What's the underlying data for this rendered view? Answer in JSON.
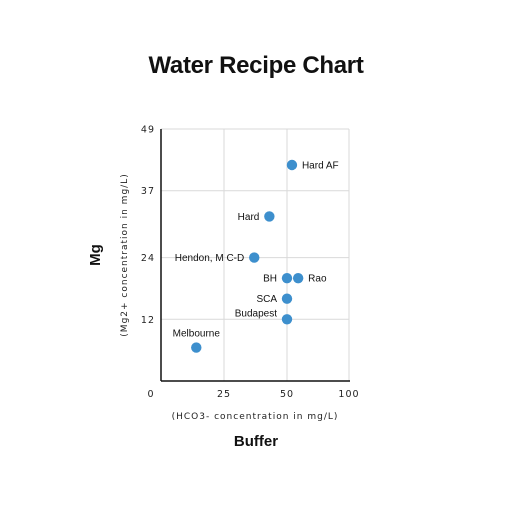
{
  "chart_data": {
    "type": "scatter",
    "title": "Water Recipe Chart",
    "xlabel": "Buffer",
    "xlabel_sub": "(HCO3- concentration in mg/L)",
    "ylabel": "Mg",
    "ylabel_sub": "(Mg2+ concentration in mg/L)",
    "xlim": [
      0,
      100
    ],
    "ylim": [
      0,
      49
    ],
    "xticks": [
      "0",
      "25",
      "50",
      "100"
    ],
    "xtick_values": [
      0,
      25,
      50,
      100
    ],
    "yticks": [
      "12",
      "24",
      "37",
      "49"
    ],
    "ytick_values": [
      12,
      24,
      37,
      49
    ],
    "grid": true,
    "marker_color": "#3d8fcd",
    "points": [
      {
        "label": "Hard AF",
        "x": 54,
        "y": 42
      },
      {
        "label": "Hard",
        "x": 43,
        "y": 32
      },
      {
        "label": "Hendon, M C-D",
        "x": 37,
        "y": 24
      },
      {
        "label": "BH",
        "x": 50,
        "y": 20
      },
      {
        "label": "Rao",
        "x": 59,
        "y": 20
      },
      {
        "label": "SCA",
        "x": 50,
        "y": 16
      },
      {
        "label": "Budapest",
        "x": 50,
        "y": 12
      },
      {
        "label": "Melbourne",
        "x": 14,
        "y": 6.5
      }
    ]
  }
}
